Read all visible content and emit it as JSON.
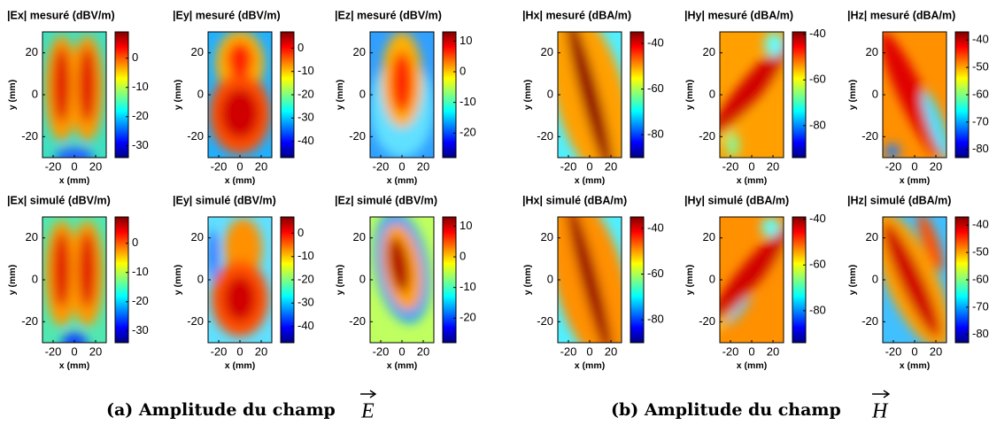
{
  "chart_data": [
    {
      "type": "heatmap",
      "title": "|Ex| mesuré (dBV/m)",
      "xlabel": "x (mm)",
      "ylabel": "y (mm)",
      "xlim": [
        -30,
        30
      ],
      "ylim": [
        -30,
        30
      ],
      "xticks": [
        -20,
        0,
        20
      ],
      "yticks": [
        -20,
        0,
        20
      ],
      "clim": [
        -34,
        9
      ],
      "cticks": [
        -30,
        -20,
        -10,
        0
      ]
    },
    {
      "type": "heatmap",
      "title": "|Ey| mesuré (dBV/m)",
      "xlabel": "x (mm)",
      "ylabel": "y (mm)",
      "xlim": [
        -30,
        30
      ],
      "ylim": [
        -30,
        30
      ],
      "xticks": [
        -20,
        0,
        20
      ],
      "yticks": [
        -20,
        0,
        20
      ],
      "clim": [
        -47,
        7
      ],
      "cticks": [
        -40,
        -30,
        -20,
        -10,
        0
      ]
    },
    {
      "type": "heatmap",
      "title": "|Ez| mesuré (dBV/m)",
      "xlabel": "x (mm)",
      "ylabel": "y (mm)",
      "xlim": [
        -30,
        30
      ],
      "ylim": [
        -30,
        30
      ],
      "xticks": [
        -20,
        0,
        20
      ],
      "yticks": [
        -20,
        0,
        20
      ],
      "clim": [
        -28,
        13
      ],
      "cticks": [
        -20,
        -10,
        0,
        10
      ]
    },
    {
      "type": "heatmap",
      "title": "|Hx| mesuré (dBA/m)",
      "xlabel": "x (mm)",
      "ylabel": "y (mm)",
      "xlim": [
        -30,
        30
      ],
      "ylim": [
        -30,
        30
      ],
      "xticks": [
        -20,
        0,
        20
      ],
      "yticks": [
        -20,
        0,
        20
      ],
      "clim": [
        -90,
        -35
      ],
      "cticks": [
        -80,
        -60,
        -40
      ]
    },
    {
      "type": "heatmap",
      "title": "|Hy| mesuré (dBA/m)",
      "xlabel": "x (mm)",
      "ylabel": "y (mm)",
      "xlim": [
        -30,
        30
      ],
      "ylim": [
        -30,
        30
      ],
      "xticks": [
        -20,
        0,
        20
      ],
      "yticks": [
        -20,
        0,
        20
      ],
      "clim": [
        -94,
        -39
      ],
      "cticks": [
        -80,
        -60,
        -40
      ]
    },
    {
      "type": "heatmap",
      "title": "|Hz| mesuré (dBA/m)",
      "xlabel": "x (mm)",
      "ylabel": "y (mm)",
      "xlim": [
        -30,
        30
      ],
      "ylim": [
        -30,
        30
      ],
      "xticks": [
        -20,
        0,
        20
      ],
      "yticks": [
        -20,
        0,
        20
      ],
      "clim": [
        -83,
        -37
      ],
      "cticks": [
        -80,
        -70,
        -60,
        -50,
        -40
      ]
    },
    {
      "type": "heatmap",
      "title": "|Ex| simulé (dBV/m)",
      "xlabel": "x (mm)",
      "ylabel": "y (mm)",
      "xlim": [
        -30,
        30
      ],
      "ylim": [
        -30,
        30
      ],
      "xticks": [
        -20,
        0,
        20
      ],
      "yticks": [
        -20,
        0,
        20
      ],
      "clim": [
        -34,
        9
      ],
      "cticks": [
        -30,
        -20,
        -10,
        0
      ]
    },
    {
      "type": "heatmap",
      "title": "|Ey| simulé (dBV/m)",
      "xlabel": "x (mm)",
      "ylabel": "y (mm)",
      "xlim": [
        -30,
        30
      ],
      "ylim": [
        -30,
        30
      ],
      "xticks": [
        -20,
        0,
        20
      ],
      "yticks": [
        -20,
        0,
        20
      ],
      "clim": [
        -47,
        7
      ],
      "cticks": [
        -40,
        -30,
        -20,
        -10,
        0
      ]
    },
    {
      "type": "heatmap",
      "title": "|Ez| simulé (dBV/m)",
      "xlabel": "x (mm)",
      "ylabel": "y (mm)",
      "xlim": [
        -30,
        30
      ],
      "ylim": [
        -30,
        30
      ],
      "xticks": [
        -20,
        0,
        20
      ],
      "yticks": [
        -20,
        0,
        20
      ],
      "clim": [
        -28,
        13
      ],
      "cticks": [
        -20,
        -10,
        0,
        10
      ]
    },
    {
      "type": "heatmap",
      "title": "|Hx| simulé (dBA/m)",
      "xlabel": "x (mm)",
      "ylabel": "y (mm)",
      "xlim": [
        -30,
        30
      ],
      "ylim": [
        -30,
        30
      ],
      "xticks": [
        -20,
        0,
        20
      ],
      "yticks": [
        -20,
        0,
        20
      ],
      "clim": [
        -90,
        -35
      ],
      "cticks": [
        -80,
        -60,
        -40
      ]
    },
    {
      "type": "heatmap",
      "title": "|Hy| simulé (dBA/m)",
      "xlabel": "x (mm)",
      "ylabel": "y (mm)",
      "xlim": [
        -30,
        30
      ],
      "ylim": [
        -30,
        30
      ],
      "xticks": [
        -20,
        0,
        20
      ],
      "yticks": [
        -20,
        0,
        20
      ],
      "clim": [
        -94,
        -39
      ],
      "cticks": [
        -80,
        -60,
        -40
      ]
    },
    {
      "type": "heatmap",
      "title": "|Hz| simulé (dBA/m)",
      "xlabel": "x (mm)",
      "ylabel": "y (mm)",
      "xlim": [
        -30,
        30
      ],
      "ylim": [
        -30,
        30
      ],
      "xticks": [
        -20,
        0,
        20
      ],
      "yticks": [
        -20,
        0,
        20
      ],
      "clim": [
        -83,
        -37
      ],
      "cticks": [
        -80,
        -70,
        -60,
        -50,
        -40
      ]
    }
  ],
  "captions": [
    {
      "text": "(a) Amplitude du champ",
      "symbol": "E"
    },
    {
      "text": "(b) Amplitude du champ",
      "symbol": "H"
    }
  ]
}
